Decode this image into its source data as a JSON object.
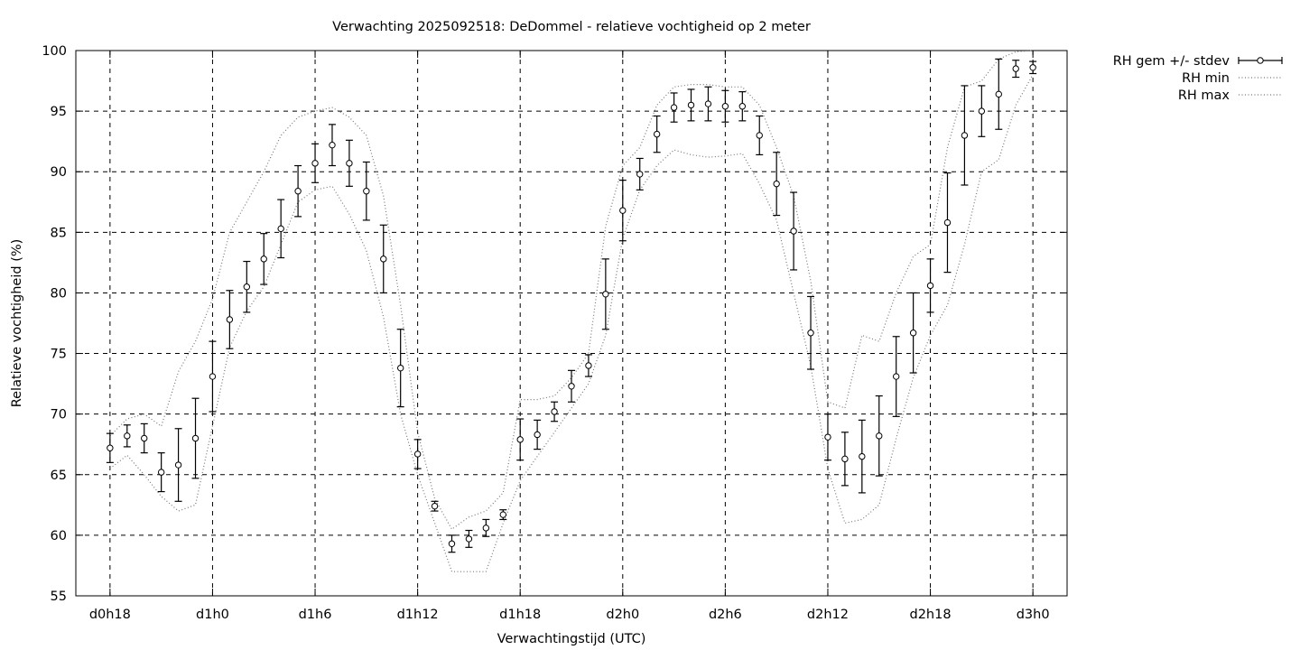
{
  "chart_data": {
    "type": "line",
    "title": "Verwachting 2025092518: DeDommel - relatieve vochtigheid op 2 meter",
    "xlabel": "Verwachtingstijd (UTC)",
    "ylabel": "Relatieve vochtigheid (%)",
    "ylim": [
      55,
      100
    ],
    "xlim": [
      16,
      74
    ],
    "grid": true,
    "legend_position": "top-right, outside plot",
    "x_ticks": [
      {
        "x": 18,
        "label": "d0h18"
      },
      {
        "x": 24,
        "label": "d1h0"
      },
      {
        "x": 30,
        "label": "d1h6"
      },
      {
        "x": 36,
        "label": "d1h12"
      },
      {
        "x": 42,
        "label": "d1h18"
      },
      {
        "x": 48,
        "label": "d2h0"
      },
      {
        "x": 54,
        "label": "d2h6"
      },
      {
        "x": 60,
        "label": "d2h12"
      },
      {
        "x": 66,
        "label": "d2h18"
      },
      {
        "x": 72,
        "label": "d3h0"
      }
    ],
    "y_ticks": [
      55,
      60,
      65,
      70,
      75,
      80,
      85,
      90,
      95,
      100
    ],
    "x": [
      18,
      19,
      20,
      21,
      22,
      23,
      24,
      25,
      26,
      27,
      28,
      29,
      30,
      31,
      32,
      33,
      34,
      35,
      36,
      37,
      38,
      39,
      40,
      41,
      42,
      43,
      44,
      45,
      46,
      47,
      48,
      49,
      50,
      51,
      52,
      53,
      54,
      55,
      56,
      57,
      58,
      59,
      60,
      61,
      62,
      63,
      64,
      65,
      66,
      67,
      68,
      69,
      70,
      71,
      72
    ],
    "series": [
      {
        "name": "RH gem +/- stdev",
        "style": "errorbars",
        "values": [
          67.2,
          68.2,
          68.0,
          65.2,
          65.8,
          68.0,
          73.1,
          77.8,
          80.5,
          82.8,
          85.3,
          88.4,
          90.7,
          92.2,
          90.7,
          88.4,
          82.8,
          73.8,
          66.7,
          62.4,
          59.3,
          59.7,
          60.6,
          61.7,
          67.9,
          68.3,
          70.2,
          72.3,
          74.0,
          79.9,
          86.8,
          89.8,
          93.1,
          95.3,
          95.5,
          95.6,
          95.4,
          95.4,
          93.0,
          89.0,
          85.1,
          76.7,
          68.1,
          66.3,
          66.5,
          68.2,
          73.1,
          76.7,
          80.6,
          85.8,
          93.0,
          95.0,
          96.4,
          98.5,
          98.6
        ],
        "stdev": [
          1.2,
          0.9,
          1.2,
          1.6,
          3.0,
          3.3,
          2.9,
          2.4,
          2.1,
          2.1,
          2.4,
          2.1,
          1.6,
          1.7,
          1.9,
          2.4,
          2.8,
          3.2,
          1.2,
          0.4,
          0.7,
          0.7,
          0.7,
          0.4,
          1.7,
          1.2,
          0.8,
          1.3,
          0.9,
          2.9,
          2.5,
          1.3,
          1.5,
          1.2,
          1.3,
          1.4,
          1.3,
          1.2,
          1.6,
          2.6,
          3.2,
          3.0,
          1.9,
          2.2,
          3.0,
          3.3,
          3.3,
          3.3,
          2.2,
          4.1,
          4.1,
          2.1,
          2.9,
          0.7,
          0.5
        ]
      },
      {
        "name": "RH min",
        "style": "dotted",
        "values": [
          65.5,
          66.6,
          65.0,
          63.2,
          62.0,
          62.5,
          69.0,
          75.5,
          78.5,
          80.5,
          84.0,
          87.5,
          88.5,
          88.8,
          86.5,
          83.5,
          78.0,
          70.0,
          65.0,
          61.0,
          57.0,
          57.0,
          57.0,
          61.0,
          64.5,
          66.5,
          68.5,
          70.5,
          72.5,
          76.5,
          84.5,
          88.5,
          90.5,
          91.8,
          91.4,
          91.2,
          91.3,
          91.5,
          89.0,
          86.0,
          80.0,
          74.0,
          65.5,
          61.0,
          61.3,
          62.5,
          68.0,
          73.0,
          76.5,
          79.0,
          84.0,
          90.0,
          91.0,
          95.5,
          98.0
        ]
      },
      {
        "name": "RH max",
        "style": "dotted",
        "values": [
          68.2,
          69.6,
          70.0,
          69.0,
          73.5,
          76.0,
          79.5,
          85.0,
          87.5,
          90.0,
          93.0,
          94.5,
          95.0,
          95.3,
          94.5,
          93.0,
          88.0,
          79.0,
          68.5,
          63.0,
          60.5,
          61.5,
          62.0,
          63.5,
          71.2,
          71.2,
          71.5,
          73.0,
          75.0,
          85.5,
          90.5,
          92.0,
          95.5,
          97.0,
          97.2,
          97.2,
          97.0,
          97.0,
          95.5,
          92.0,
          88.0,
          81.0,
          71.0,
          70.5,
          76.5,
          76.0,
          80.0,
          83.0,
          84.0,
          92.0,
          97.0,
          97.5,
          99.3,
          99.9,
          100.0
        ]
      }
    ]
  }
}
